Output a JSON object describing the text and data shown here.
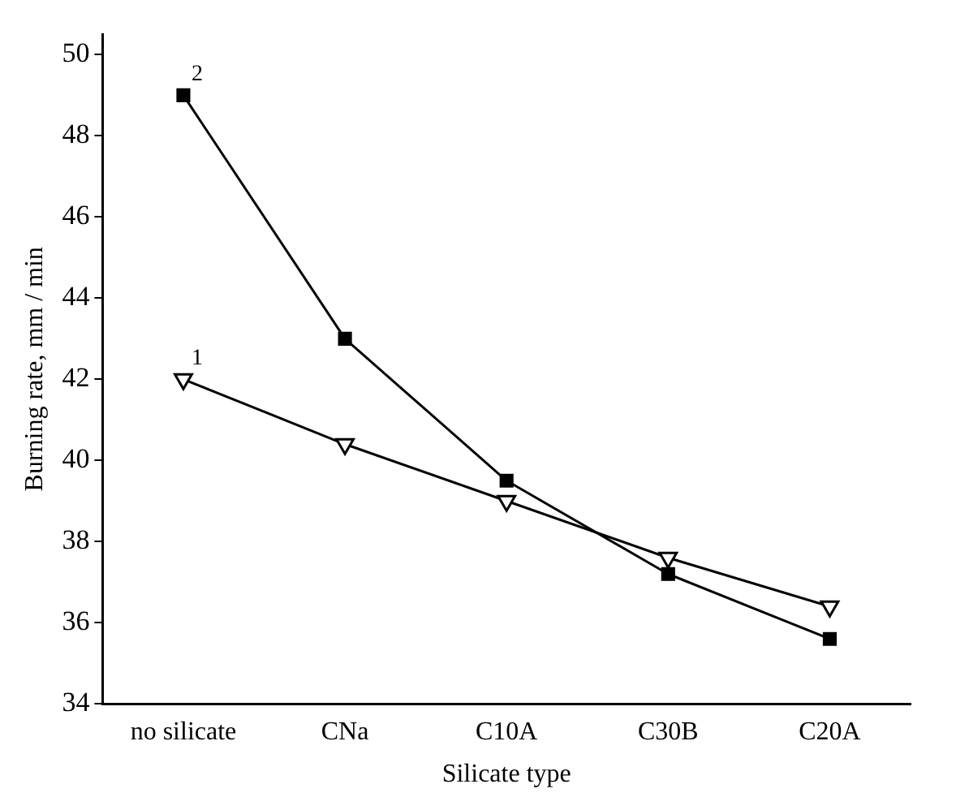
{
  "chart_data": {
    "type": "line",
    "xlabel": "Silicate type",
    "ylabel": "Burning rate, mm / min",
    "categories": [
      "no silicate",
      "CNa",
      "C10A",
      "C30B",
      "C20A"
    ],
    "series": [
      {
        "name": "1",
        "color": "#000000",
        "marker": "triangle",
        "values": [
          42.0,
          40.4,
          39.0,
          37.6,
          36.4
        ]
      },
      {
        "name": "2",
        "color": "#000000",
        "marker": "square",
        "values": [
          49.0,
          43.0,
          39.5,
          37.2,
          35.6
        ]
      }
    ],
    "ylim": [
      34,
      50.5
    ],
    "yticks": [
      34,
      36,
      38,
      40,
      42,
      44,
      46,
      48,
      50
    ],
    "grid": false,
    "legend": false,
    "line_style": "solid"
  }
}
